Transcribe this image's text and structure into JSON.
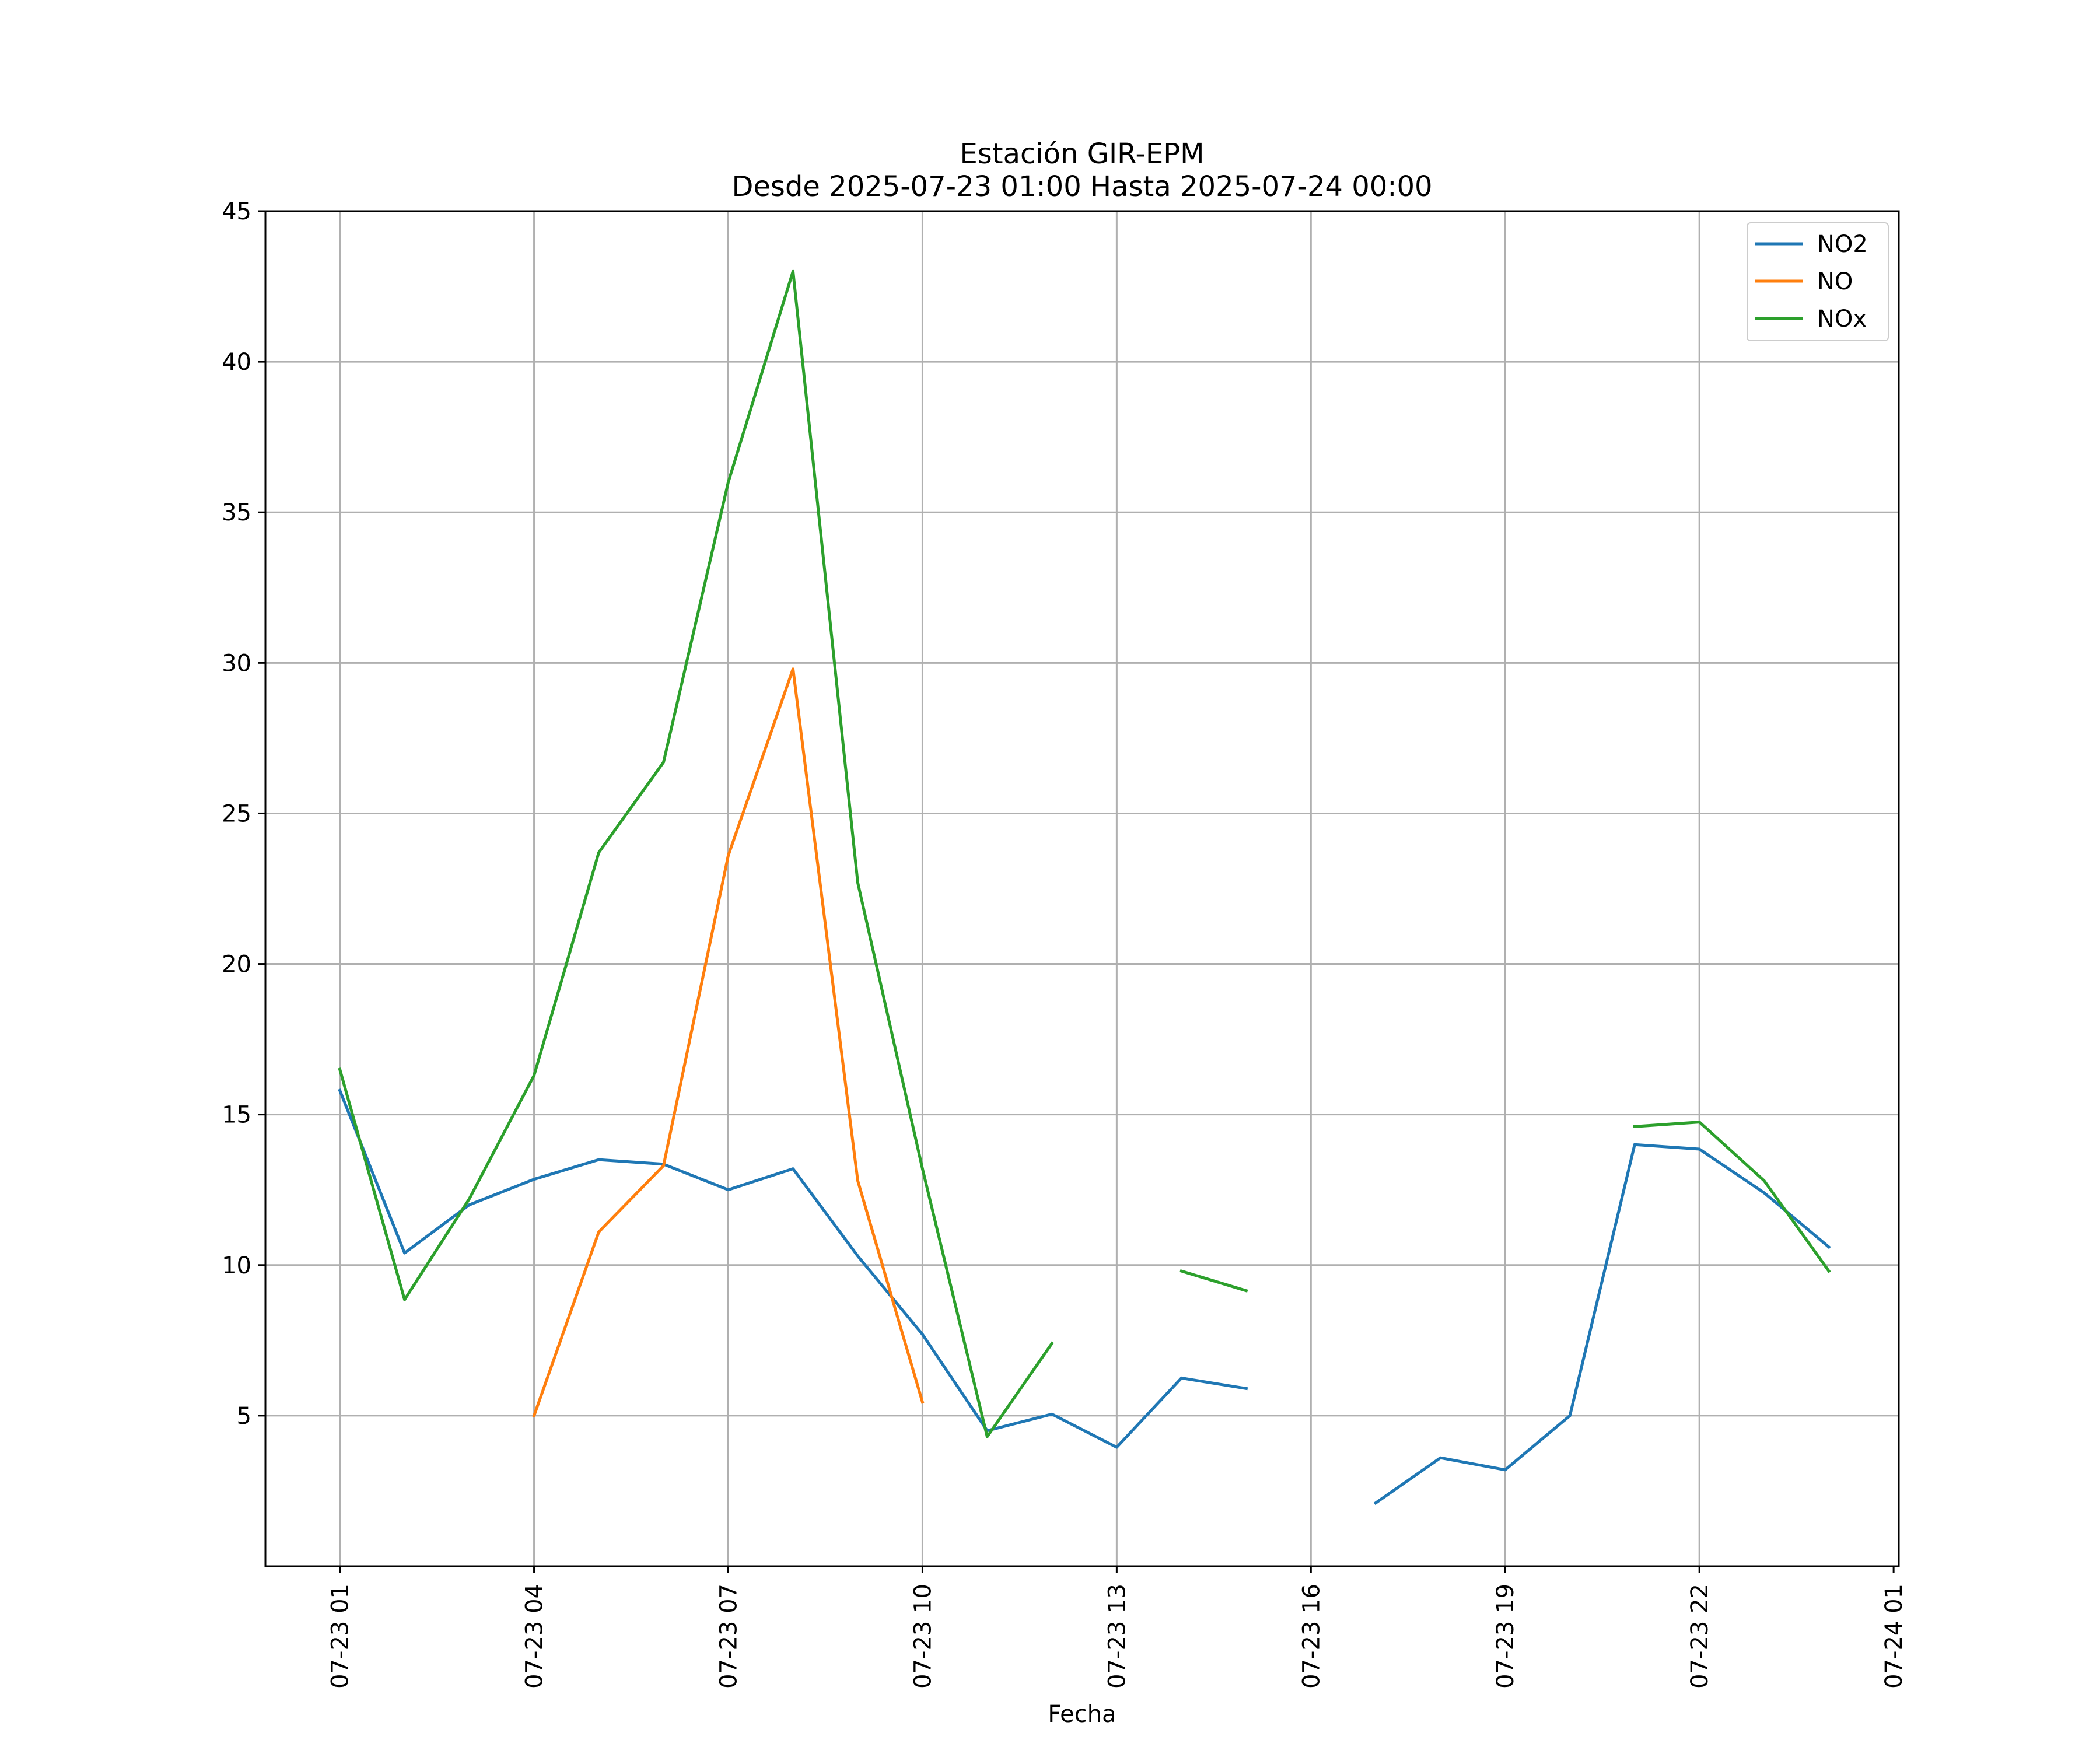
{
  "chart_data": {
    "type": "line",
    "title_line1": "Estación GIR-EPM",
    "title_line2": "Desde 2025-07-23 01:00 Hasta 2025-07-24 00:00",
    "xlabel": "Fecha",
    "ylabel": "",
    "x": [
      "07-23 01:00",
      "07-23 02:00",
      "07-23 03:00",
      "07-23 04:00",
      "07-23 05:00",
      "07-23 06:00",
      "07-23 07:00",
      "07-23 08:00",
      "07-23 09:00",
      "07-23 10:00",
      "07-23 11:00",
      "07-23 12:00",
      "07-23 13:00",
      "07-23 14:00",
      "07-23 15:00",
      "07-23 16:00",
      "07-23 17:00",
      "07-23 18:00",
      "07-23 19:00",
      "07-23 20:00",
      "07-23 21:00",
      "07-23 22:00",
      "07-23 23:00",
      "07-24 00:00"
    ],
    "x_ticks": [
      "07-23 01",
      "07-23 04",
      "07-23 07",
      "07-23 10",
      "07-23 13",
      "07-23 16",
      "07-23 19",
      "07-23 22",
      "07-24 01"
    ],
    "x_tick_hours": [
      1,
      4,
      7,
      10,
      13,
      16,
      19,
      22,
      25
    ],
    "xlim_hours": [
      -0.15,
      25.08
    ],
    "ylim": [
      0.0,
      45
    ],
    "y_ticks": [
      5,
      10,
      15,
      20,
      25,
      30,
      35,
      40,
      45
    ],
    "grid": true,
    "legend_position": "top-right",
    "series": [
      {
        "name": "NO2",
        "color": "#1f77b4",
        "values": [
          15.8,
          10.4,
          12.0,
          12.85,
          13.5,
          13.35,
          12.5,
          13.2,
          10.3,
          7.7,
          4.5,
          5.05,
          3.95,
          6.25,
          5.9,
          null,
          2.1,
          3.6,
          3.2,
          5.0,
          14.0,
          13.85,
          12.4,
          10.6
        ]
      },
      {
        "name": "NO",
        "color": "#ff7f0e",
        "values": [
          null,
          null,
          null,
          5.0,
          11.1,
          13.3,
          23.6,
          29.8,
          12.8,
          5.45,
          null,
          null,
          null,
          null,
          null,
          null,
          null,
          null,
          null,
          null,
          null,
          null,
          null,
          null
        ]
      },
      {
        "name": "NOx",
        "color": "#2ca02c",
        "values": [
          16.5,
          8.85,
          12.2,
          16.3,
          23.7,
          26.7,
          36.0,
          43.0,
          22.7,
          13.2,
          4.3,
          7.4,
          null,
          9.8,
          9.15,
          null,
          null,
          null,
          null,
          null,
          14.6,
          14.75,
          12.8,
          9.8
        ]
      }
    ]
  }
}
